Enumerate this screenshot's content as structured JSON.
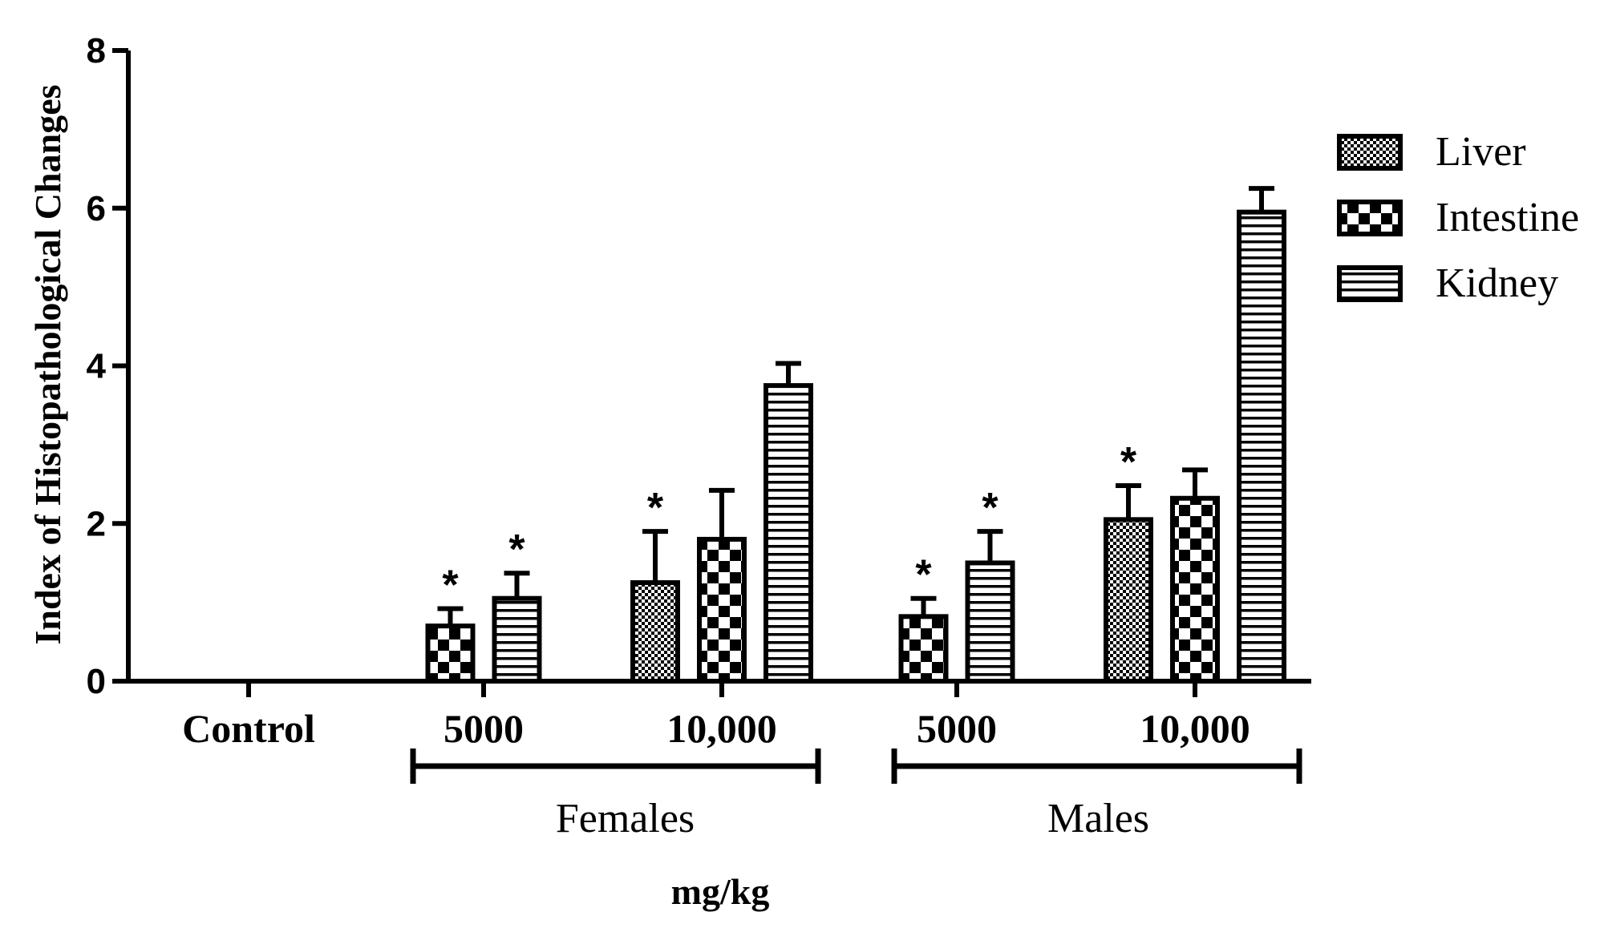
{
  "chart_data": {
    "type": "bar",
    "title": "",
    "ylabel": "Index of Histopathological Changes",
    "xlabel": "mg/kg",
    "ylim": [
      0,
      8
    ],
    "yticks": [
      0,
      2,
      4,
      6,
      8
    ],
    "categories": [
      "Control",
      "5000",
      "10,000",
      "5000",
      "10,000"
    ],
    "groups": [
      {
        "label": "Females",
        "categories": [
          1,
          2
        ]
      },
      {
        "label": "Males",
        "categories": [
          3,
          4
        ]
      }
    ],
    "series": [
      {
        "name": "Liver",
        "values": [
          0,
          0,
          1.25,
          0,
          2.05
        ],
        "errors": [
          0,
          0,
          0.65,
          0,
          0.43
        ],
        "significant": [
          false,
          false,
          true,
          false,
          true
        ]
      },
      {
        "name": "Intestine",
        "values": [
          0,
          0.7,
          1.8,
          0.82,
          2.32
        ],
        "errors": [
          0,
          0.22,
          0.62,
          0.23,
          0.36
        ],
        "significant": [
          false,
          true,
          false,
          true,
          false
        ]
      },
      {
        "name": "Kidney",
        "values": [
          0,
          1.05,
          3.75,
          1.5,
          5.95
        ],
        "errors": [
          0,
          0.32,
          0.28,
          0.4,
          0.3
        ],
        "significant": [
          false,
          true,
          false,
          true,
          false
        ]
      }
    ],
    "significance_marker": "*",
    "legend_position": "right"
  },
  "colors": {
    "ink": "#000000",
    "background": "#ffffff"
  }
}
